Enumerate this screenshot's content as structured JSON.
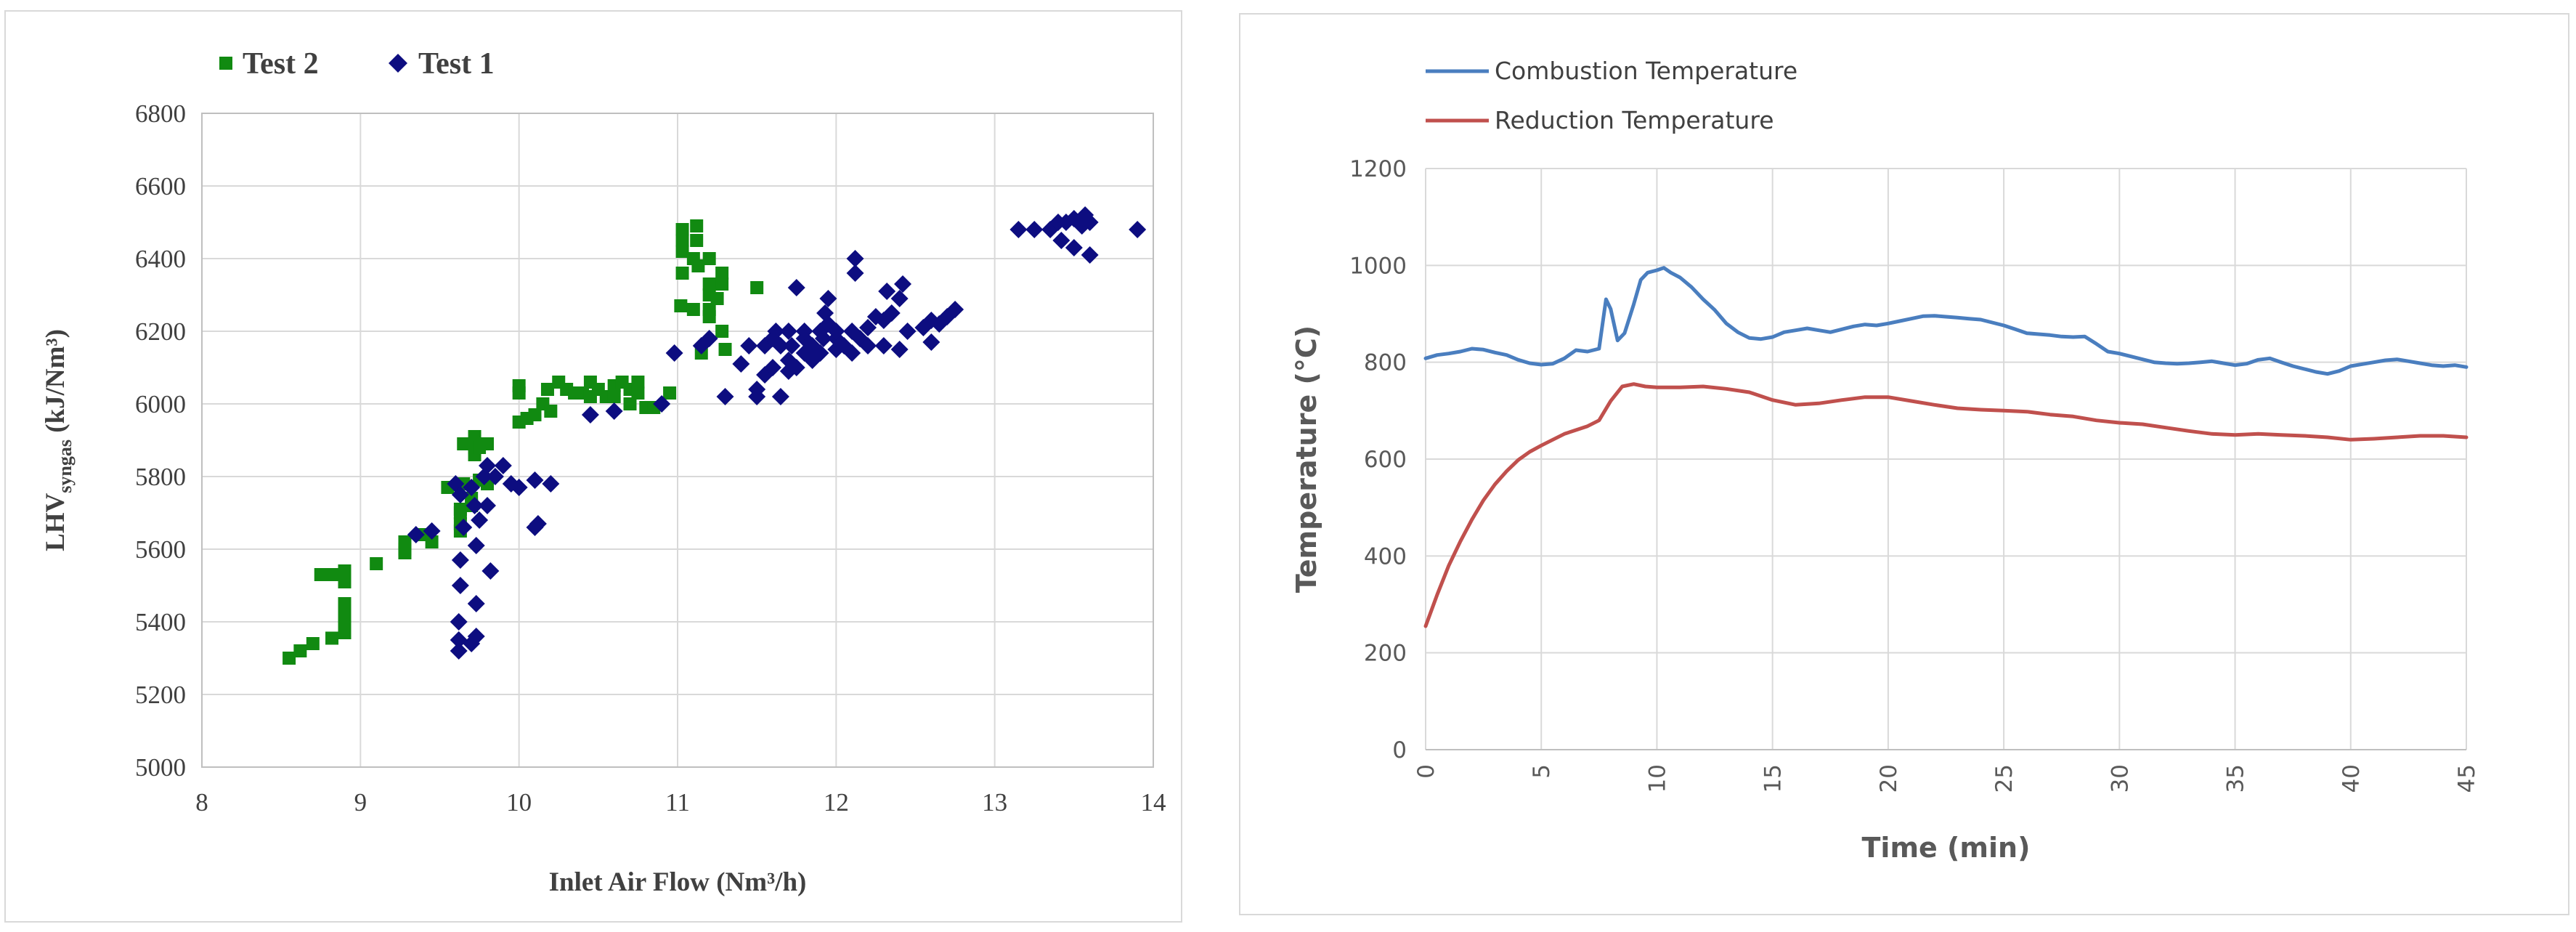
{
  "chart_data": [
    {
      "type": "scatter",
      "xlabel": "Inlet Air Flow (Nm³/h)",
      "ylabel": "LHV",
      "ylabel_sub": "syngas",
      "ylabel_unit": " (kJ/Nm³)",
      "xlim": [
        8,
        14
      ],
      "ylim": [
        5000,
        6800
      ],
      "xticks": [
        8,
        9,
        10,
        11,
        12,
        13,
        14
      ],
      "yticks": [
        5000,
        5200,
        5400,
        5600,
        5800,
        6000,
        6200,
        6400,
        6600,
        6800
      ],
      "legend_position": "top-left",
      "series": [
        {
          "name": "Test 2",
          "marker": "square",
          "color": "#118a11",
          "points": [
            [
              8.55,
              5300
            ],
            [
              8.62,
              5320
            ],
            [
              8.7,
              5340
            ],
            [
              8.75,
              5530
            ],
            [
              8.8,
              5530
            ],
            [
              8.82,
              5355
            ],
            [
              8.87,
              5530
            ],
            [
              8.9,
              5370
            ],
            [
              8.9,
              5400
            ],
            [
              8.9,
              5420
            ],
            [
              8.9,
              5450
            ],
            [
              8.9,
              5510
            ],
            [
              8.9,
              5540
            ],
            [
              9.1,
              5560
            ],
            [
              9.28,
              5590
            ],
            [
              9.28,
              5600
            ],
            [
              9.28,
              5620
            ],
            [
              9.4,
              5640
            ],
            [
              9.45,
              5620
            ],
            [
              9.55,
              5770
            ],
            [
              9.63,
              5650
            ],
            [
              9.63,
              5670
            ],
            [
              9.63,
              5700
            ],
            [
              9.63,
              5710
            ],
            [
              9.65,
              5780
            ],
            [
              9.65,
              5890
            ],
            [
              9.7,
              5720
            ],
            [
              9.7,
              5740
            ],
            [
              9.72,
              5860
            ],
            [
              9.72,
              5880
            ],
            [
              9.72,
              5910
            ],
            [
              9.75,
              5880
            ],
            [
              9.75,
              5790
            ],
            [
              9.8,
              5780
            ],
            [
              9.8,
              5890
            ],
            [
              10.0,
              5950
            ],
            [
              10.0,
              6030
            ],
            [
              10.0,
              6050
            ],
            [
              10.05,
              5960
            ],
            [
              10.1,
              5970
            ],
            [
              10.15,
              6000
            ],
            [
              10.18,
              6040
            ],
            [
              10.2,
              5980
            ],
            [
              10.25,
              6060
            ],
            [
              10.3,
              6040
            ],
            [
              10.35,
              6030
            ],
            [
              10.4,
              6030
            ],
            [
              10.45,
              6020
            ],
            [
              10.45,
              6060
            ],
            [
              10.5,
              6040
            ],
            [
              10.55,
              6020
            ],
            [
              10.6,
              6050
            ],
            [
              10.6,
              6020
            ],
            [
              10.65,
              6060
            ],
            [
              10.7,
              6000
            ],
            [
              10.7,
              6040
            ],
            [
              10.75,
              6030
            ],
            [
              10.75,
              6060
            ],
            [
              10.8,
              5990
            ],
            [
              10.85,
              5990
            ],
            [
              10.95,
              6030
            ],
            [
              11.02,
              6270
            ],
            [
              11.03,
              6360
            ],
            [
              11.03,
              6420
            ],
            [
              11.03,
              6450
            ],
            [
              11.03,
              6480
            ],
            [
              11.1,
              6260
            ],
            [
              11.1,
              6400
            ],
            [
              11.12,
              6450
            ],
            [
              11.12,
              6490
            ],
            [
              11.13,
              6380
            ],
            [
              11.15,
              6140
            ],
            [
              11.2,
              6240
            ],
            [
              11.2,
              6260
            ],
            [
              11.2,
              6300
            ],
            [
              11.2,
              6330
            ],
            [
              11.2,
              6400
            ],
            [
              11.25,
              6290
            ],
            [
              11.28,
              6200
            ],
            [
              11.28,
              6330
            ],
            [
              11.28,
              6360
            ],
            [
              11.3,
              6150
            ],
            [
              11.5,
              6320
            ]
          ]
        },
        {
          "name": "Test 1",
          "marker": "diamond",
          "color": "#0d0d80",
          "points": [
            [
              9.35,
              5640
            ],
            [
              9.45,
              5650
            ],
            [
              9.6,
              5780
            ],
            [
              9.62,
              5320
            ],
            [
              9.62,
              5350
            ],
            [
              9.62,
              5400
            ],
            [
              9.63,
              5500
            ],
            [
              9.63,
              5570
            ],
            [
              9.63,
              5750
            ],
            [
              9.65,
              5660
            ],
            [
              9.7,
              5340
            ],
            [
              9.7,
              5770
            ],
            [
              9.72,
              5720
            ],
            [
              9.73,
              5360
            ],
            [
              9.73,
              5450
            ],
            [
              9.73,
              5610
            ],
            [
              9.75,
              5680
            ],
            [
              9.78,
              5800
            ],
            [
              9.8,
              5720
            ],
            [
              9.8,
              5830
            ],
            [
              9.82,
              5540
            ],
            [
              9.85,
              5800
            ],
            [
              9.9,
              5830
            ],
            [
              9.95,
              5780
            ],
            [
              10.0,
              5770
            ],
            [
              10.1,
              5790
            ],
            [
              10.1,
              5660
            ],
            [
              10.12,
              5670
            ],
            [
              10.2,
              5780
            ],
            [
              10.45,
              5970
            ],
            [
              10.6,
              5980
            ],
            [
              10.9,
              6000
            ],
            [
              10.98,
              6140
            ],
            [
              11.15,
              6160
            ],
            [
              11.2,
              6180
            ],
            [
              11.3,
              6020
            ],
            [
              11.4,
              6110
            ],
            [
              11.45,
              6160
            ],
            [
              11.5,
              6040
            ],
            [
              11.5,
              6020
            ],
            [
              11.55,
              6080
            ],
            [
              11.55,
              6160
            ],
            [
              11.6,
              6100
            ],
            [
              11.6,
              6180
            ],
            [
              11.62,
              6200
            ],
            [
              11.65,
              6160
            ],
            [
              11.65,
              6020
            ],
            [
              11.7,
              6090
            ],
            [
              11.7,
              6120
            ],
            [
              11.7,
              6200
            ],
            [
              11.72,
              6160
            ],
            [
              11.75,
              6320
            ],
            [
              11.75,
              6100
            ],
            [
              11.8,
              6140
            ],
            [
              11.8,
              6180
            ],
            [
              11.8,
              6200
            ],
            [
              11.85,
              6160
            ],
            [
              11.85,
              6120
            ],
            [
              11.9,
              6140
            ],
            [
              11.9,
              6200
            ],
            [
              11.92,
              6180
            ],
            [
              11.93,
              6250
            ],
            [
              11.95,
              6290
            ],
            [
              11.95,
              6220
            ],
            [
              12.0,
              6150
            ],
            [
              12.0,
              6180
            ],
            [
              12.0,
              6200
            ],
            [
              12.05,
              6160
            ],
            [
              12.1,
              6140
            ],
            [
              12.1,
              6200
            ],
            [
              12.12,
              6360
            ],
            [
              12.12,
              6400
            ],
            [
              12.15,
              6180
            ],
            [
              12.2,
              6160
            ],
            [
              12.2,
              6210
            ],
            [
              12.25,
              6240
            ],
            [
              12.3,
              6160
            ],
            [
              12.3,
              6230
            ],
            [
              12.32,
              6310
            ],
            [
              12.35,
              6250
            ],
            [
              12.4,
              6150
            ],
            [
              12.4,
              6290
            ],
            [
              12.42,
              6330
            ],
            [
              12.45,
              6200
            ],
            [
              12.55,
              6210
            ],
            [
              12.6,
              6170
            ],
            [
              12.6,
              6230
            ],
            [
              12.65,
              6220
            ],
            [
              12.7,
              6240
            ],
            [
              12.75,
              6260
            ],
            [
              13.15,
              6480
            ],
            [
              13.25,
              6480
            ],
            [
              13.35,
              6480
            ],
            [
              13.4,
              6500
            ],
            [
              13.42,
              6450
            ],
            [
              13.45,
              6500
            ],
            [
              13.5,
              6430
            ],
            [
              13.5,
              6510
            ],
            [
              13.55,
              6490
            ],
            [
              13.57,
              6520
            ],
            [
              13.6,
              6410
            ],
            [
              13.6,
              6500
            ],
            [
              13.9,
              6480
            ]
          ]
        }
      ]
    },
    {
      "type": "line",
      "xlabel": "Time (min)",
      "ylabel": "Temperature (°C)",
      "xlim": [
        0,
        45
      ],
      "ylim": [
        0,
        1200
      ],
      "xticks": [
        0,
        5,
        10,
        15,
        20,
        25,
        30,
        35,
        40,
        45
      ],
      "yticks": [
        0,
        200,
        400,
        600,
        800,
        1000,
        1200
      ],
      "grid": true,
      "legend_position": "top-left",
      "series": [
        {
          "name": "Combustion Temperature",
          "color": "#4a7ebf",
          "x": [
            0,
            0.5,
            1,
            1.5,
            2,
            2.5,
            3,
            3.5,
            4,
            4.5,
            5,
            5.5,
            6,
            6.5,
            7,
            7.5,
            7.8,
            8,
            8.3,
            8.6,
            9,
            9.3,
            9.6,
            10,
            10.3,
            10.6,
            11,
            11.5,
            12,
            12.5,
            13,
            13.5,
            14,
            14.5,
            15,
            15.5,
            16,
            16.5,
            17,
            17.5,
            18,
            18.5,
            19,
            19.5,
            20,
            20.5,
            21,
            21.5,
            22,
            22.5,
            23,
            23.5,
            24,
            24.5,
            25,
            25.5,
            26,
            26.5,
            27,
            27.5,
            28,
            28.5,
            29,
            29.5,
            30,
            30.5,
            31,
            31.5,
            32,
            32.5,
            33,
            33.5,
            34,
            34.5,
            35,
            35.5,
            36,
            36.5,
            37,
            37.5,
            38,
            38.5,
            39,
            39.5,
            40,
            40.5,
            41,
            41.5,
            42,
            42.5,
            43,
            43.5,
            44,
            44.5,
            45
          ],
          "y": [
            808,
            815,
            818,
            822,
            828,
            826,
            820,
            815,
            805,
            798,
            795,
            797,
            808,
            825,
            822,
            828,
            930,
            910,
            845,
            860,
            920,
            970,
            985,
            990,
            995,
            985,
            975,
            955,
            930,
            908,
            880,
            862,
            850,
            848,
            852,
            862,
            866,
            870,
            866,
            862,
            868,
            874,
            878,
            876,
            880,
            885,
            890,
            895,
            896,
            894,
            892,
            890,
            888,
            882,
            876,
            868,
            860,
            858,
            856,
            853,
            852,
            853,
            838,
            822,
            818,
            812,
            806,
            800,
            798,
            797,
            798,
            800,
            802,
            798,
            794,
            797,
            805,
            808,
            800,
            792,
            786,
            780,
            776,
            782,
            792,
            796,
            800,
            804,
            806,
            802,
            798,
            794,
            792,
            794,
            790
          ],
          "ends_with_value": true
        },
        {
          "name": "Reduction Temperature",
          "color": "#c0504d",
          "x": [
            0,
            0.5,
            1,
            1.5,
            2,
            2.5,
            3,
            3.5,
            4,
            4.5,
            5,
            5.5,
            6,
            6.5,
            7,
            7.5,
            8,
            8.5,
            9,
            9.5,
            10,
            11,
            12,
            13,
            14,
            15,
            16,
            17,
            18,
            19,
            20,
            21,
            22,
            23,
            24,
            25,
            26,
            27,
            28,
            29,
            30,
            31,
            32,
            33,
            34,
            35,
            36,
            37,
            38,
            39,
            40,
            41,
            42,
            43,
            44,
            45
          ],
          "y": [
            255,
            320,
            380,
            430,
            475,
            515,
            548,
            575,
            598,
            615,
            628,
            640,
            652,
            660,
            668,
            680,
            720,
            750,
            755,
            750,
            748,
            748,
            750,
            745,
            738,
            722,
            712,
            715,
            722,
            728,
            728,
            720,
            712,
            705,
            702,
            700,
            698,
            692,
            688,
            680,
            675,
            672,
            665,
            658,
            652,
            650,
            652,
            650,
            648,
            645,
            640,
            642,
            645,
            648,
            648,
            645
          ]
        }
      ]
    }
  ]
}
